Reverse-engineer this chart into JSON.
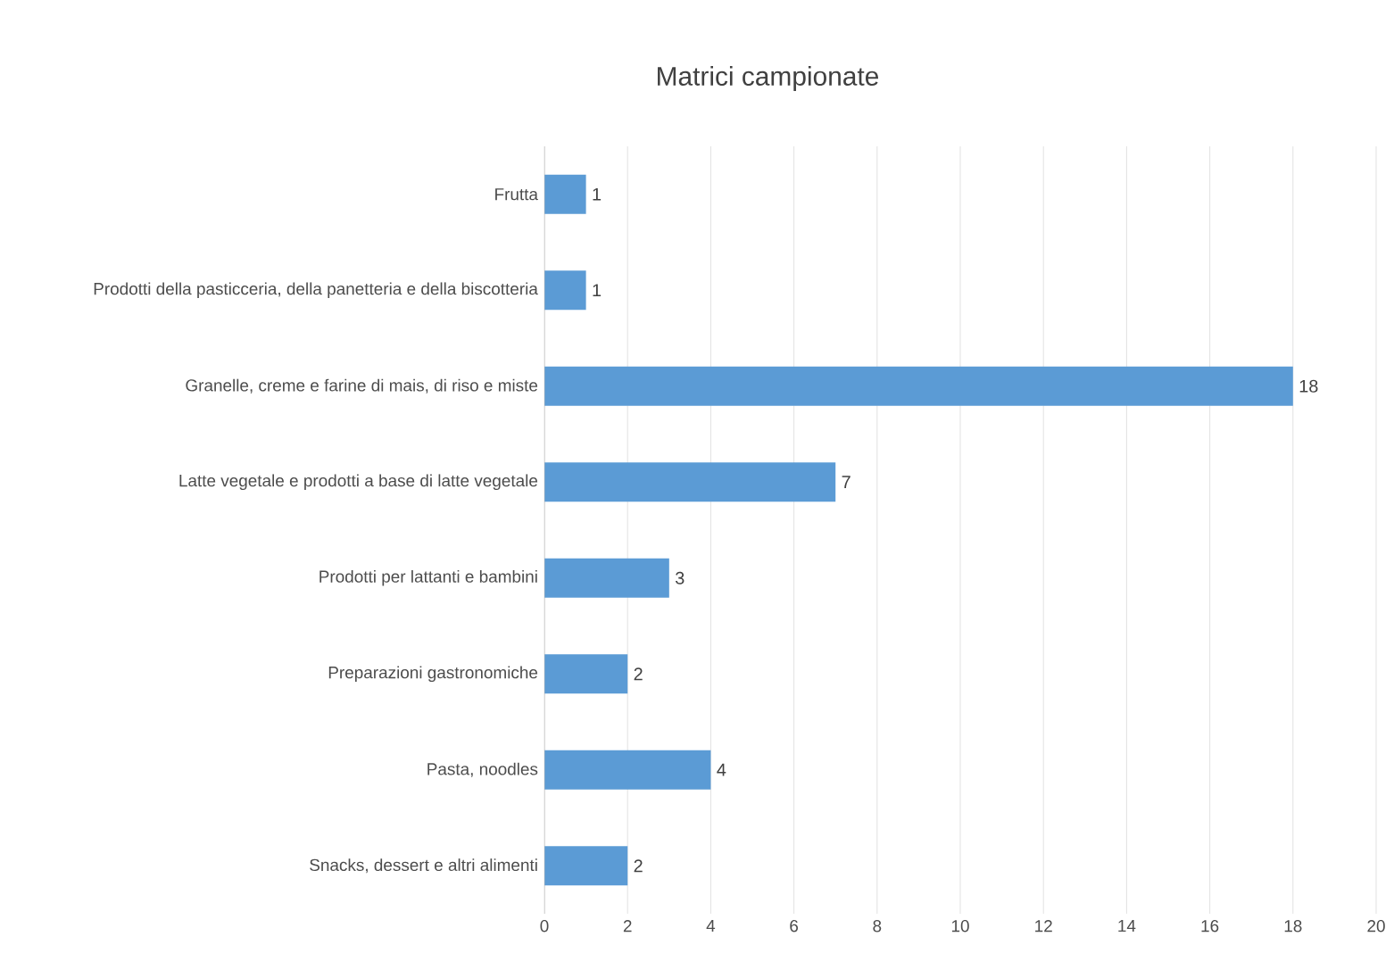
{
  "chart_data": {
    "type": "bar",
    "orientation": "horizontal",
    "title": "Matrici campionate",
    "categories": [
      "Frutta",
      "Prodotti della pasticceria, della panetteria e della biscotteria",
      "Granelle, creme e farine di mais, di riso e miste",
      "Latte vegetale e prodotti a base di latte vegetale",
      "Prodotti per lattanti e bambini",
      "Preparazioni gastronomiche",
      "Pasta, noodles",
      "Snacks, dessert e altri alimenti"
    ],
    "values": [
      1,
      1,
      18,
      7,
      3,
      2,
      4,
      2
    ],
    "color": "#5b9bd5",
    "xlim": [
      0,
      20
    ],
    "xticks": [
      0,
      2,
      4,
      6,
      8,
      10,
      12,
      14,
      16,
      18,
      20
    ],
    "grid": "x",
    "data_labels": true
  }
}
